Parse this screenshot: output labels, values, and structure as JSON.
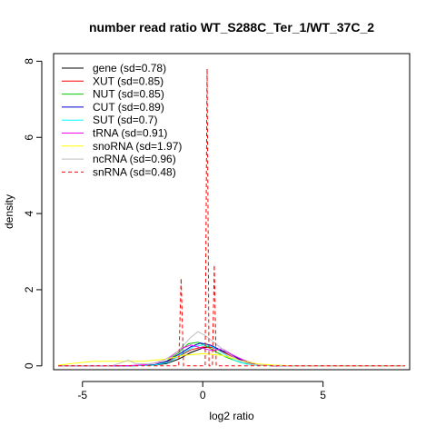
{
  "chart_data": {
    "type": "line",
    "title": "number read ratio WT_S288C_Ter_1/WT_37C_2",
    "xlabel": "log2 ratio",
    "ylabel": "density",
    "xlim": [
      -6.2,
      8.6
    ],
    "ylim": [
      -0.1,
      8.2
    ],
    "x_ticks": [
      -5,
      0,
      5
    ],
    "x_tick_labels": [
      "-5",
      "0",
      "5"
    ],
    "y_ticks": [
      0,
      2,
      4,
      6,
      8
    ],
    "y_tick_labels": [
      "0",
      "2",
      "4",
      "6",
      "8"
    ],
    "grid": false,
    "legend_position": "top-left",
    "series": [
      {
        "name": "gene (sd=0.78)",
        "color": "#000000",
        "dashed": false,
        "points": [
          [
            -6,
            0
          ],
          [
            -3,
            0
          ],
          [
            -2,
            0.02
          ],
          [
            -1.5,
            0.06
          ],
          [
            -1,
            0.18
          ],
          [
            -0.5,
            0.35
          ],
          [
            0,
            0.47
          ],
          [
            0.3,
            0.5
          ],
          [
            0.6,
            0.45
          ],
          [
            1,
            0.35
          ],
          [
            1.5,
            0.2
          ],
          [
            2,
            0.08
          ],
          [
            2.5,
            0.02
          ],
          [
            3,
            0
          ],
          [
            8.4,
            0
          ]
        ]
      },
      {
        "name": "XUT (sd=0.85)",
        "color": "#ff0000",
        "dashed": false,
        "points": [
          [
            -6,
            0
          ],
          [
            -3,
            0
          ],
          [
            -2,
            0.03
          ],
          [
            -1.5,
            0.1
          ],
          [
            -1,
            0.25
          ],
          [
            -0.5,
            0.42
          ],
          [
            0,
            0.5
          ],
          [
            0.4,
            0.48
          ],
          [
            0.8,
            0.38
          ],
          [
            1.2,
            0.25
          ],
          [
            1.8,
            0.1
          ],
          [
            2.3,
            0.03
          ],
          [
            3,
            0
          ],
          [
            8.4,
            0
          ]
        ]
      },
      {
        "name": "NUT (sd=0.85)",
        "color": "#00cc00",
        "dashed": false,
        "points": [
          [
            -6,
            0
          ],
          [
            -3,
            0
          ],
          [
            -2,
            0.03
          ],
          [
            -1.5,
            0.12
          ],
          [
            -1,
            0.35
          ],
          [
            -0.6,
            0.58
          ],
          [
            -0.2,
            0.62
          ],
          [
            0.2,
            0.5
          ],
          [
            0.6,
            0.35
          ],
          [
            1,
            0.22
          ],
          [
            1.6,
            0.08
          ],
          [
            2.2,
            0.02
          ],
          [
            3,
            0
          ],
          [
            8.4,
            0
          ]
        ]
      },
      {
        "name": "CUT (sd=0.89)",
        "color": "#0000cc",
        "dashed": false,
        "points": [
          [
            -6,
            0
          ],
          [
            -3,
            0
          ],
          [
            -2,
            0.03
          ],
          [
            -1.5,
            0.12
          ],
          [
            -1,
            0.3
          ],
          [
            -0.5,
            0.5
          ],
          [
            -0.1,
            0.6
          ],
          [
            0.3,
            0.55
          ],
          [
            0.8,
            0.4
          ],
          [
            1.3,
            0.25
          ],
          [
            1.8,
            0.1
          ],
          [
            2.4,
            0.03
          ],
          [
            3,
            0
          ],
          [
            8.4,
            0
          ]
        ]
      },
      {
        "name": "SUT (sd=0.7)",
        "color": "#00ffff",
        "dashed": false,
        "points": [
          [
            -6,
            0
          ],
          [
            -3,
            0
          ],
          [
            -2,
            0.02
          ],
          [
            -1.4,
            0.1
          ],
          [
            -0.9,
            0.3
          ],
          [
            -0.4,
            0.5
          ],
          [
            0,
            0.55
          ],
          [
            0.4,
            0.5
          ],
          [
            0.8,
            0.35
          ],
          [
            1.3,
            0.15
          ],
          [
            1.8,
            0.05
          ],
          [
            2.4,
            0.01
          ],
          [
            3,
            0
          ],
          [
            8.4,
            0
          ]
        ]
      },
      {
        "name": "tRNA (sd=0.91)",
        "color": "#ff00ff",
        "dashed": false,
        "points": [
          [
            -6,
            0
          ],
          [
            -3.2,
            0
          ],
          [
            -2.4,
            0.03
          ],
          [
            -1.8,
            0.1
          ],
          [
            -1.3,
            0.25
          ],
          [
            -0.9,
            0.45
          ],
          [
            -0.5,
            0.55
          ],
          [
            -0.1,
            0.48
          ],
          [
            0.4,
            0.4
          ],
          [
            0.8,
            0.45
          ],
          [
            1.2,
            0.3
          ],
          [
            1.8,
            0.12
          ],
          [
            2.4,
            0.03
          ],
          [
            3,
            0
          ],
          [
            8.4,
            0
          ]
        ]
      },
      {
        "name": "snoRNA (sd=1.97)",
        "color": "#ffff00",
        "dashed": false,
        "points": [
          [
            -6,
            0.02
          ],
          [
            -5.2,
            0.08
          ],
          [
            -4.5,
            0.12
          ],
          [
            -3.5,
            0.12
          ],
          [
            -2.5,
            0.12
          ],
          [
            -1.5,
            0.18
          ],
          [
            -0.8,
            0.28
          ],
          [
            0,
            0.32
          ],
          [
            0.8,
            0.28
          ],
          [
            1.5,
            0.15
          ],
          [
            2.3,
            0.05
          ],
          [
            3,
            0.02
          ],
          [
            3.8,
            0
          ],
          [
            8.4,
            0
          ]
        ]
      },
      {
        "name": "ncRNA (sd=0.96)",
        "color": "#bebebe",
        "dashed": false,
        "points": [
          [
            -6,
            0
          ],
          [
            -3.8,
            0
          ],
          [
            -3.4,
            0.08
          ],
          [
            -3.1,
            0.15
          ],
          [
            -2.8,
            0.06
          ],
          [
            -2.2,
            0.05
          ],
          [
            -1.6,
            0.15
          ],
          [
            -1,
            0.4
          ],
          [
            -0.5,
            0.75
          ],
          [
            -0.2,
            0.9
          ],
          [
            0.1,
            0.8
          ],
          [
            0.5,
            0.6
          ],
          [
            1,
            0.35
          ],
          [
            1.5,
            0.15
          ],
          [
            2,
            0.04
          ],
          [
            2.6,
            0.01
          ],
          [
            3.2,
            0
          ],
          [
            8.4,
            0
          ]
        ]
      },
      {
        "name": "snRNA (sd=0.48)",
        "color": "#ff0000",
        "dashed": true,
        "points": [
          [
            -6,
            0
          ],
          [
            -1.0,
            0
          ],
          [
            -0.9,
            2.3
          ],
          [
            -0.8,
            0
          ],
          [
            0.1,
            0
          ],
          [
            0.18,
            7.8
          ],
          [
            0.26,
            0
          ],
          [
            0.4,
            0
          ],
          [
            0.48,
            2.65
          ],
          [
            0.56,
            0
          ],
          [
            8.4,
            0
          ]
        ]
      }
    ]
  }
}
